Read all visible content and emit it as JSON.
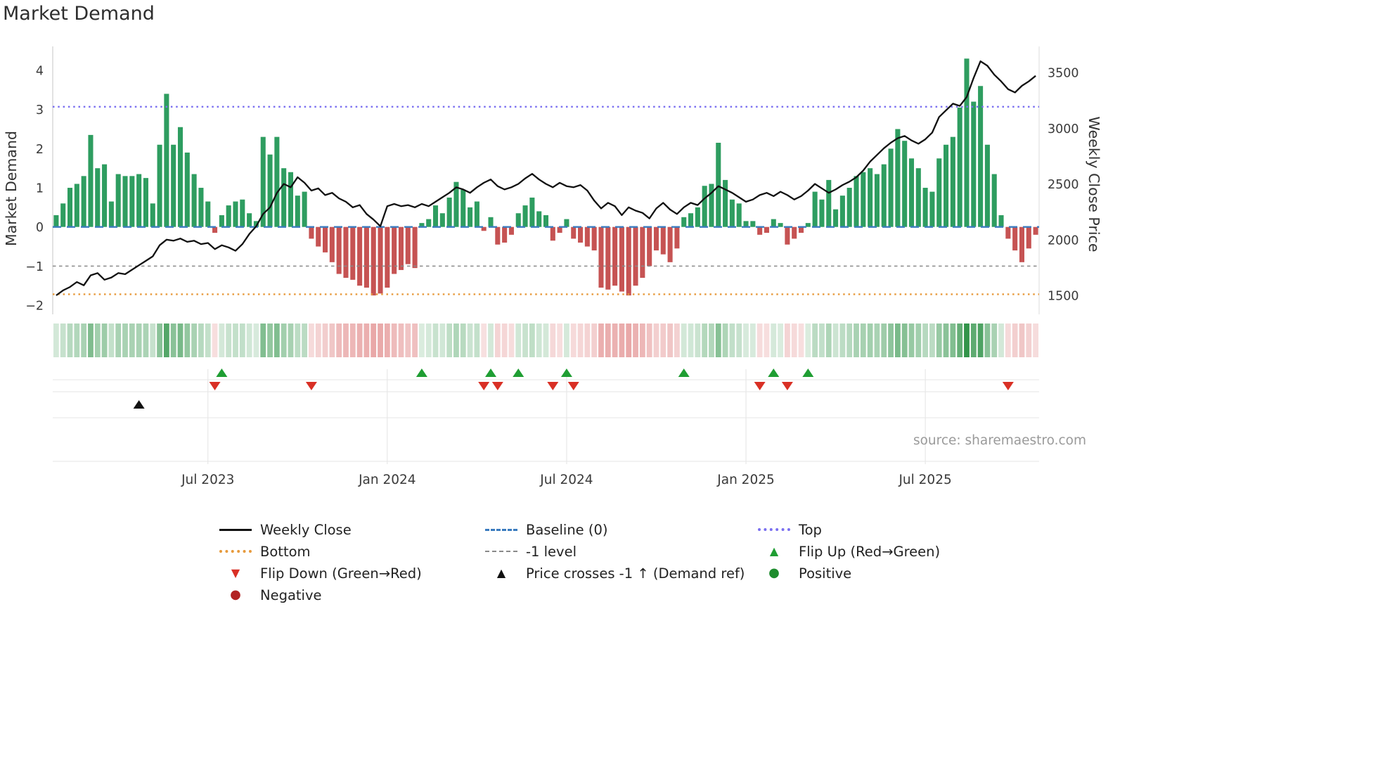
{
  "title": "Market Demand",
  "source": "source: sharemaestro.com",
  "axes": {
    "left_label": "Market Demand",
    "right_label": "Weekly Close Price"
  },
  "legend": {
    "items": [
      {
        "id": "weekly-close",
        "label": "Weekly Close",
        "swatch": "line",
        "color": "#111111",
        "icon": "weekly-close-line-icon"
      },
      {
        "id": "baseline",
        "label": "Baseline (0)",
        "swatch": "dashed",
        "color": "#3a7bbf",
        "icon": "baseline-dash-icon"
      },
      {
        "id": "top",
        "label": "Top",
        "swatch": "dotted",
        "color": "#7a6ff0",
        "icon": "top-dotted-line-icon"
      },
      {
        "id": "bottom",
        "label": "Bottom",
        "swatch": "dotted",
        "color": "#e79a3c",
        "icon": "bottom-dotted-line-icon"
      },
      {
        "id": "minus1",
        "label": "-1 level",
        "swatch": "dash-short",
        "color": "#8a8a8a",
        "icon": "minus1-dash-icon"
      },
      {
        "id": "flip-up",
        "label": "Flip Up (Red→Green)",
        "swatch": "tri-up",
        "color": "#1f9e33",
        "icon": "flip-up-triangle-icon"
      },
      {
        "id": "flip-down",
        "label": "Flip Down (Green→Red)",
        "swatch": "tri-down",
        "color": "#d93025",
        "icon": "flip-down-triangle-icon"
      },
      {
        "id": "price-cross",
        "label": "Price crosses -1 ↑ (Demand ref)",
        "swatch": "tri-up",
        "color": "#111111",
        "icon": "price-cross-triangle-icon"
      },
      {
        "id": "positive",
        "label": "Positive",
        "swatch": "circle",
        "color": "#1e8c2e",
        "icon": "positive-circle-icon"
      },
      {
        "id": "negative",
        "label": "Negative",
        "swatch": "circle",
        "color": "#b22222",
        "icon": "negative-circle-icon"
      }
    ]
  },
  "chart_data": {
    "type": "bar",
    "subtype": "combo-bar-line-with-heatmap-and-event-markers",
    "x_unit": "week",
    "x_ticks": [
      {
        "index": 22,
        "label": "Jul 2023"
      },
      {
        "index": 48,
        "label": "Jan 2024"
      },
      {
        "index": 74,
        "label": "Jul 2024"
      },
      {
        "index": 100,
        "label": "Jan 2025"
      },
      {
        "index": 126,
        "label": "Jul 2025"
      }
    ],
    "left_ticks": [
      {
        "label": "4",
        "value": 4
      },
      {
        "label": "3",
        "value": 3
      },
      {
        "label": "2",
        "value": 2
      },
      {
        "label": "1",
        "value": 1
      },
      {
        "label": "0",
        "value": 0
      },
      {
        "label": "−1",
        "value": -1
      },
      {
        "label": "−2",
        "value": -2
      }
    ],
    "right_ticks": [
      {
        "label": "3500",
        "value": 3500
      },
      {
        "label": "3000",
        "value": 3000
      },
      {
        "label": "2500",
        "value": 2500
      },
      {
        "label": "2000",
        "value": 2000
      },
      {
        "label": "1500",
        "value": 1500
      }
    ],
    "ylim_left": [
      -2.35,
      4.55
    ],
    "ylim_right": [
      1430,
      3660
    ],
    "series": [
      {
        "name": "Market Demand",
        "render": "bar",
        "axis": "left",
        "positive_color": "#2e9d60",
        "negative_color": "#c65353",
        "values": [
          0.3,
          0.6,
          1.0,
          1.1,
          1.3,
          2.35,
          1.5,
          1.6,
          0.65,
          1.35,
          1.3,
          1.3,
          1.35,
          1.25,
          0.6,
          2.1,
          3.4,
          2.1,
          2.55,
          1.9,
          1.35,
          1.0,
          0.65,
          -0.15,
          0.3,
          0.55,
          0.65,
          0.7,
          0.35,
          0.15,
          2.3,
          1.85,
          2.3,
          1.5,
          1.4,
          0.8,
          0.9,
          -0.3,
          -0.5,
          -0.65,
          -0.9,
          -1.2,
          -1.3,
          -1.35,
          -1.5,
          -1.55,
          -1.75,
          -1.7,
          -1.55,
          -1.2,
          -1.1,
          -0.95,
          -1.05,
          0.1,
          0.2,
          0.55,
          0.35,
          0.75,
          1.15,
          0.95,
          0.5,
          0.65,
          -0.1,
          0.25,
          -0.45,
          -0.4,
          -0.2,
          0.35,
          0.55,
          0.75,
          0.4,
          0.3,
          -0.35,
          -0.15,
          0.2,
          -0.3,
          -0.4,
          -0.5,
          -0.6,
          -1.55,
          -1.6,
          -1.5,
          -1.65,
          -1.75,
          -1.5,
          -1.3,
          -1.0,
          -0.6,
          -0.7,
          -0.9,
          -0.55,
          0.25,
          0.35,
          0.5,
          1.05,
          1.1,
          2.15,
          1.2,
          0.7,
          0.6,
          0.15,
          0.15,
          -0.2,
          -0.15,
          0.2,
          0.1,
          -0.45,
          -0.3,
          -0.15,
          0.1,
          0.9,
          0.7,
          1.2,
          0.45,
          0.8,
          1.0,
          1.3,
          1.4,
          1.5,
          1.35,
          1.6,
          2.0,
          2.5,
          2.2,
          1.75,
          1.5,
          1.0,
          0.9,
          1.75,
          2.1,
          2.3,
          3.05,
          4.3,
          3.2,
          3.6,
          2.1,
          1.35,
          0.3,
          -0.3,
          -0.6,
          -0.9,
          -0.55,
          -0.2
        ]
      },
      {
        "name": "Weekly Close",
        "render": "line",
        "axis": "right",
        "color": "#111111",
        "values": [
          1500,
          1545,
          1575,
          1620,
          1590,
          1680,
          1700,
          1640,
          1660,
          1700,
          1690,
          1730,
          1770,
          1810,
          1850,
          1950,
          2000,
          1990,
          2010,
          1980,
          1990,
          1960,
          1970,
          1915,
          1950,
          1930,
          1900,
          1960,
          2050,
          2120,
          2230,
          2290,
          2420,
          2500,
          2470,
          2560,
          2510,
          2440,
          2460,
          2400,
          2420,
          2370,
          2340,
          2290,
          2310,
          2230,
          2180,
          2120,
          2300,
          2320,
          2300,
          2310,
          2290,
          2320,
          2300,
          2340,
          2380,
          2420,
          2470,
          2450,
          2420,
          2470,
          2510,
          2540,
          2480,
          2450,
          2470,
          2500,
          2550,
          2590,
          2540,
          2500,
          2470,
          2510,
          2480,
          2470,
          2490,
          2440,
          2350,
          2280,
          2330,
          2300,
          2220,
          2290,
          2260,
          2240,
          2190,
          2280,
          2330,
          2270,
          2230,
          2290,
          2330,
          2310,
          2370,
          2420,
          2480,
          2450,
          2420,
          2380,
          2340,
          2360,
          2400,
          2420,
          2390,
          2430,
          2400,
          2360,
          2390,
          2440,
          2500,
          2460,
          2420,
          2450,
          2490,
          2520,
          2560,
          2620,
          2700,
          2760,
          2820,
          2870,
          2910,
          2930,
          2890,
          2860,
          2900,
          2960,
          3100,
          3160,
          3220,
          3200,
          3280,
          3450,
          3600,
          3560,
          3480,
          3420,
          3350,
          3320,
          3380,
          3420,
          3470
        ]
      }
    ],
    "reference_lines": [
      {
        "id": "top",
        "name": "Top",
        "value": 3.07,
        "axis": "left",
        "color": "#7a6ff0",
        "style": "dotted",
        "width": 2.3
      },
      {
        "id": "baseline",
        "name": "Baseline (0)",
        "value": 0,
        "axis": "left",
        "color": "#3a7bbf",
        "style": "dashed",
        "width": 2.4
      },
      {
        "id": "minus1",
        "name": "-1 level",
        "value": -1,
        "axis": "left",
        "color": "#8a8a8a",
        "style": "dash-short",
        "width": 1.6
      },
      {
        "id": "bottom",
        "name": "Bottom",
        "value": -1.72,
        "axis": "left",
        "color": "#e79a3c",
        "style": "dotted",
        "width": 2.3
      }
    ],
    "markers": {
      "flip_up_color": "#1f9e33",
      "flip_down_color": "#d93025",
      "price_cross_color": "#111111",
      "flip_up_weeks": [
        24,
        53,
        63,
        67,
        74,
        91,
        104,
        109
      ],
      "flip_down_weeks": [
        23,
        37,
        62,
        64,
        72,
        75,
        102,
        106,
        138
      ],
      "price_cross_weeks": [
        12
      ]
    },
    "heatmap": {
      "derived_from": "Market Demand",
      "positive_rgb": "34,140,60",
      "negative_rgb": "208,70,70"
    },
    "grid": {
      "vertical_at_x_ticks": true,
      "horizontal_panel_lines": true
    },
    "legend_position": "bottom"
  }
}
